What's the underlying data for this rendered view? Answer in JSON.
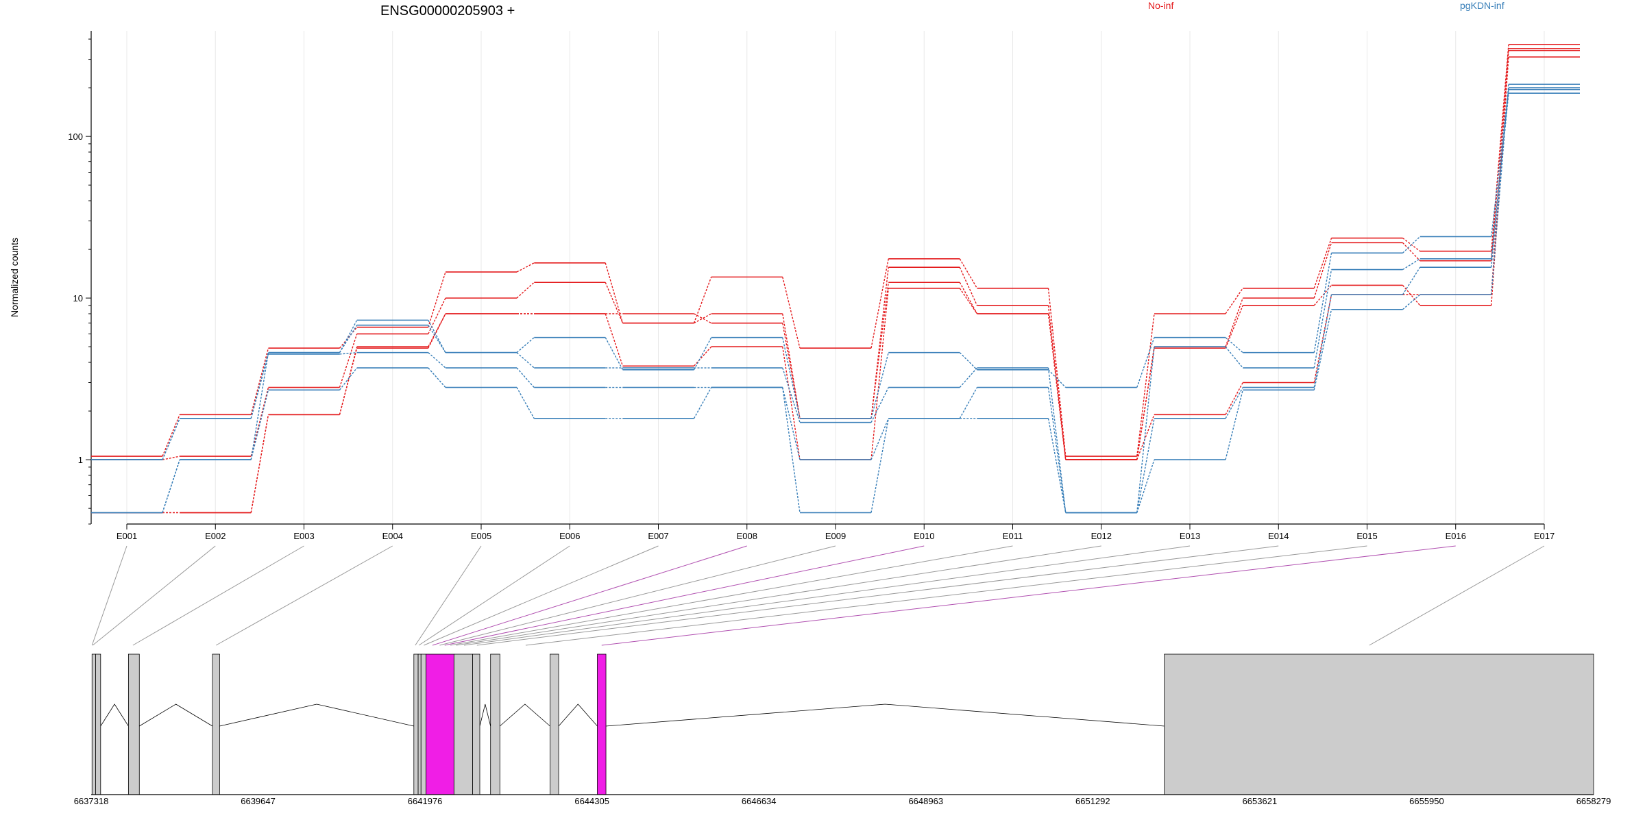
{
  "chart_data": {
    "type": "line",
    "title": "ENSG00000205903 +",
    "ylabel": "Normalized counts",
    "y_scale": "log",
    "ylim": [
      0.4,
      450
    ],
    "y_ticks": [
      1,
      10,
      100
    ],
    "grid": "vertical",
    "legend_placement": "top-right",
    "legend": [
      {
        "label": "No-inf",
        "color": "#e41a1c"
      },
      {
        "label": "pgKDN-inf",
        "color": "#377eb8"
      }
    ],
    "categories": [
      "E001",
      "E002",
      "E003",
      "E004",
      "E005",
      "E006",
      "E007",
      "E008",
      "E009",
      "E010",
      "E011",
      "E012",
      "E013",
      "E014",
      "E015",
      "E016",
      "E017"
    ],
    "series": [
      {
        "group": "No-inf",
        "color": "#e41a1c",
        "values": [
          1.05,
          1.9,
          4.9,
          6.6,
          14.5,
          16.5,
          7,
          13.5,
          4.9,
          17.5,
          11.5,
          1.05,
          8,
          11.5,
          23.5,
          19.5,
          370
        ]
      },
      {
        "group": "No-inf",
        "color": "#e41a1c",
        "values": [
          1,
          1.05,
          2.8,
          6,
          10,
          12.5,
          7,
          8,
          1.8,
          15.5,
          9,
          1,
          5,
          10,
          22,
          17,
          340
        ]
      },
      {
        "group": "No-inf",
        "color": "#e41a1c",
        "values": [
          0.47,
          0.47,
          1.9,
          5,
          8,
          8,
          8,
          7,
          1.8,
          12.5,
          8,
          1,
          4.9,
          9,
          12,
          9,
          310
        ]
      },
      {
        "group": "No-inf",
        "color": "#e41a1c",
        "values": [
          0.47,
          0.47,
          1.9,
          4.9,
          8,
          8,
          3.8,
          5,
          1,
          11.5,
          8,
          1,
          1.9,
          3,
          10.5,
          10.5,
          350
        ]
      },
      {
        "group": "pgKDN-inf",
        "color": "#377eb8",
        "values": [
          1,
          1.8,
          4.6,
          7.3,
          4.6,
          5.7,
          3.6,
          5.7,
          1.8,
          4.6,
          3.6,
          2.8,
          5.7,
          4.6,
          19,
          24,
          200
        ]
      },
      {
        "group": "pgKDN-inf",
        "color": "#377eb8",
        "values": [
          0.47,
          1,
          4.6,
          6.8,
          4.6,
          3.7,
          3.7,
          3.7,
          1.7,
          2.8,
          3.7,
          0.47,
          5,
          3.7,
          15,
          17.5,
          195
        ]
      },
      {
        "group": "pgKDN-inf",
        "color": "#377eb8",
        "values": [
          1,
          1.8,
          4.5,
          4.6,
          3.7,
          2.8,
          2.8,
          2.8,
          1,
          1.8,
          2.8,
          0.47,
          1.8,
          2.8,
          10.5,
          15.5,
          185
        ]
      },
      {
        "group": "pgKDN-inf",
        "color": "#377eb8",
        "values": [
          0.47,
          1,
          2.7,
          3.7,
          2.8,
          1.8,
          1.8,
          2.8,
          0.47,
          1.8,
          1.8,
          0.47,
          1,
          2.7,
          8.5,
          10.5,
          210
        ]
      }
    ],
    "genome": {
      "start": 6637318,
      "end": 6658279,
      "ticks": [
        6637318,
        6639647,
        6641976,
        6644305,
        6646634,
        6648963,
        6651292,
        6653621,
        6655950,
        6658279
      ],
      "exons": [
        {
          "id": "E001",
          "start": 6637330,
          "end": 6637380,
          "highlight": false
        },
        {
          "id": "E002",
          "start": 6637380,
          "end": 6637450,
          "highlight": false
        },
        {
          "id": "E003",
          "start": 6637838,
          "end": 6637990,
          "highlight": false
        },
        {
          "id": "E004",
          "start": 6639010,
          "end": 6639110,
          "highlight": false
        },
        {
          "id": "E005",
          "start": 6641820,
          "end": 6641880,
          "highlight": false
        },
        {
          "id": "E006",
          "start": 6641880,
          "end": 6641920,
          "highlight": false
        },
        {
          "id": "E007",
          "start": 6641920,
          "end": 6641990,
          "highlight": false
        },
        {
          "id": "E008",
          "start": 6641990,
          "end": 6642380,
          "highlight": true
        },
        {
          "id": "E009",
          "start": 6642380,
          "end": 6642640,
          "highlight": false
        },
        {
          "id": "E010",
          "start": 6642640,
          "end": 6642740,
          "highlight": false
        },
        {
          "id": "E011",
          "start": 6642890,
          "end": 6643020,
          "highlight": false
        },
        {
          "id": "E012",
          "start": 6643720,
          "end": 6643840,
          "highlight": false
        },
        {
          "id": "E013",
          "start": 6644380,
          "end": 6644500,
          "highlight": true
        },
        {
          "id": "E014",
          "start": 6652290,
          "end": 6658279,
          "highlight": false
        }
      ],
      "introns": [
        [
          6637450,
          6637838
        ],
        [
          6637990,
          6639010
        ],
        [
          6639110,
          6641820
        ],
        [
          6642740,
          6642890
        ],
        [
          6643020,
          6643720
        ],
        [
          6643840,
          6644380
        ],
        [
          6644500,
          6652290
        ]
      ],
      "connectors": [
        {
          "bin": "E001",
          "pos": 6637330,
          "highlight": false
        },
        {
          "bin": "E002",
          "pos": 6637340,
          "highlight": false
        },
        {
          "bin": "E003",
          "pos": 6637900,
          "highlight": false
        },
        {
          "bin": "E004",
          "pos": 6639060,
          "highlight": false
        },
        {
          "bin": "E005",
          "pos": 6641840,
          "highlight": false
        },
        {
          "bin": "E006",
          "pos": 6641890,
          "highlight": false
        },
        {
          "bin": "E007",
          "pos": 6641960,
          "highlight": false
        },
        {
          "bin": "E008",
          "pos": 6642080,
          "highlight": true
        },
        {
          "bin": "E009",
          "pos": 6642180,
          "highlight": false
        },
        {
          "bin": "E010",
          "pos": 6642250,
          "highlight": true
        },
        {
          "bin": "E011",
          "pos": 6642330,
          "highlight": false
        },
        {
          "bin": "E012",
          "pos": 6642410,
          "highlight": false
        },
        {
          "bin": "E013",
          "pos": 6642520,
          "highlight": false
        },
        {
          "bin": "E014",
          "pos": 6642700,
          "highlight": false
        },
        {
          "bin": "E015",
          "pos": 6643380,
          "highlight": false
        },
        {
          "bin": "E016",
          "pos": 6644440,
          "highlight": true
        },
        {
          "bin": "E017",
          "pos": 6655150,
          "highlight": false
        }
      ]
    }
  },
  "colors": {
    "no_inf": "#e41a1c",
    "pgkdn_inf": "#377eb8",
    "highlight_exon": "#f01ee6",
    "exon": "#cccccc",
    "connector": "#999999",
    "connector_highlight": "#b04fb0"
  }
}
